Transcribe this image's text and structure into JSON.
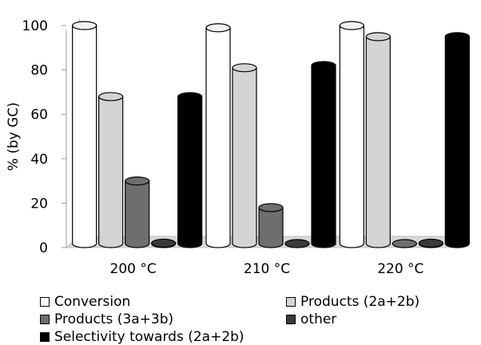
{
  "chart_data": {
    "type": "bar",
    "categories": [
      "200 °C",
      "210 °C",
      "220 °C"
    ],
    "series": [
      {
        "name": "Conversion",
        "values": [
          100,
          99,
          100
        ],
        "color": "#ffffff"
      },
      {
        "name": "Products (2a+2b)",
        "values": [
          68,
          81,
          95
        ],
        "color": "#d4d4d4"
      },
      {
        "name": "Products (3a+3b)",
        "values": [
          30,
          18,
          1
        ],
        "color": "#6e6e6e"
      },
      {
        "name": "other",
        "values": [
          2,
          0,
          2
        ],
        "color": "#3a3a3a"
      },
      {
        "name": "Selectivity towards (2a+2b)",
        "values": [
          68,
          82,
          95
        ],
        "color": "#000000"
      }
    ],
    "xlabel": "",
    "ylabel": "% (by GC)",
    "yticks": [
      0,
      20,
      40,
      60,
      80,
      100
    ],
    "ylim": [
      0,
      100
    ],
    "legend_position": "bottom",
    "grid": false
  }
}
